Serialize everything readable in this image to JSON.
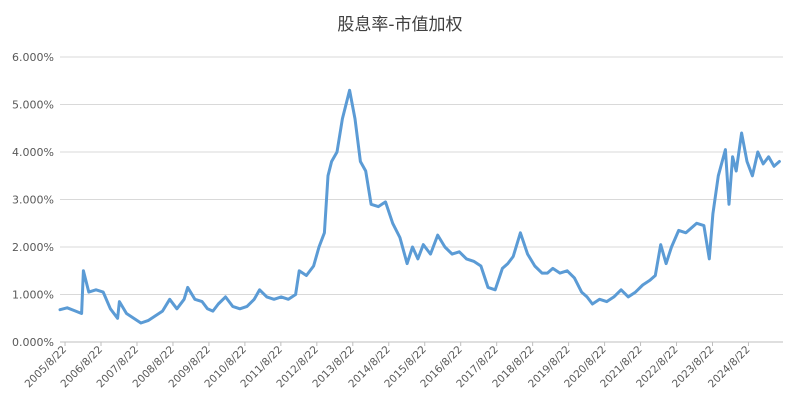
{
  "chart_data": {
    "type": "line",
    "title": "股息率-市值加权",
    "xlabel": "",
    "ylabel": "",
    "ylim": [
      0,
      6
    ],
    "y_ticks": [
      0,
      1,
      2,
      3,
      4,
      5,
      6
    ],
    "y_tick_labels": [
      "0.000%",
      "1.000%",
      "2.000%",
      "3.000%",
      "4.000%",
      "5.000%",
      "6.000%"
    ],
    "x_range": [
      2005.5,
      2025.6
    ],
    "x_ticks": [
      2005.64,
      2006.64,
      2007.64,
      2008.64,
      2009.64,
      2010.64,
      2011.64,
      2012.64,
      2013.64,
      2014.64,
      2015.64,
      2016.64,
      2017.64,
      2018.64,
      2019.64,
      2020.64,
      2021.64,
      2022.64,
      2023.64,
      2024.64
    ],
    "x_tick_labels": [
      "2005/8/22",
      "2006/8/22",
      "2007/8/22",
      "2008/8/22",
      "2009/8/22",
      "2010/8/22",
      "2011/8/22",
      "2012/8/22",
      "2013/8/22",
      "2014/8/22",
      "2015/8/22",
      "2016/8/22",
      "2017/8/22",
      "2018/8/22",
      "2019/8/22",
      "2020/8/22",
      "2021/8/22",
      "2022/8/22",
      "2023/8/22",
      "2024/8/22"
    ],
    "grid": true,
    "legend": "none",
    "color": "#5b9bd5",
    "series": [
      {
        "x": [
          2005.5,
          2005.7,
          2005.9,
          2006.1,
          2006.15,
          2006.3,
          2006.5,
          2006.7,
          2006.9,
          2007.1,
          2007.15,
          2007.35,
          2007.55,
          2007.75,
          2007.95,
          2008.15,
          2008.35,
          2008.55,
          2008.75,
          2008.95,
          2009.05,
          2009.25,
          2009.45,
          2009.6,
          2009.75,
          2009.9,
          2010.1,
          2010.3,
          2010.5,
          2010.7,
          2010.9,
          2011.05,
          2011.25,
          2011.45,
          2011.65,
          2011.85,
          2012.05,
          2012.15,
          2012.35,
          2012.55,
          2012.7,
          2012.85,
          2012.95,
          2013.05,
          2013.2,
          2013.35,
          2013.55,
          2013.7,
          2013.85,
          2014.0,
          2014.15,
          2014.35,
          2014.55,
          2014.75,
          2014.95,
          2015.15,
          2015.3,
          2015.45,
          2015.6,
          2015.8,
          2016.0,
          2016.2,
          2016.4,
          2016.6,
          2016.8,
          2017.0,
          2017.2,
          2017.4,
          2017.6,
          2017.8,
          2017.95,
          2018.1,
          2018.3,
          2018.5,
          2018.7,
          2018.9,
          2019.05,
          2019.2,
          2019.4,
          2019.6,
          2019.8,
          2020.0,
          2020.15,
          2020.3,
          2020.5,
          2020.7,
          2020.9,
          2021.1,
          2021.3,
          2021.5,
          2021.7,
          2021.9,
          2022.05,
          2022.2,
          2022.35,
          2022.5,
          2022.7,
          2022.9,
          2023.05,
          2023.2,
          2023.4,
          2023.55,
          2023.65,
          2023.8,
          2024.0,
          2024.1,
          2024.2,
          2024.3,
          2024.45,
          2024.6,
          2024.75,
          2024.9,
          2025.05,
          2025.2,
          2025.35,
          2025.5
        ],
        "y": [
          0.68,
          0.72,
          0.66,
          0.6,
          1.5,
          1.05,
          1.1,
          1.05,
          0.7,
          0.5,
          0.85,
          0.6,
          0.5,
          0.4,
          0.45,
          0.55,
          0.65,
          0.9,
          0.7,
          0.9,
          1.15,
          0.9,
          0.85,
          0.7,
          0.65,
          0.8,
          0.95,
          0.75,
          0.7,
          0.75,
          0.9,
          1.1,
          0.95,
          0.9,
          0.95,
          0.9,
          1.0,
          1.5,
          1.4,
          1.6,
          2.0,
          2.3,
          3.5,
          3.8,
          4.0,
          4.7,
          5.3,
          4.7,
          3.8,
          3.6,
          2.9,
          2.85,
          2.95,
          2.5,
          2.2,
          1.65,
          2.0,
          1.75,
          2.05,
          1.85,
          2.25,
          2.0,
          1.85,
          1.9,
          1.75,
          1.7,
          1.6,
          1.15,
          1.1,
          1.55,
          1.65,
          1.8,
          2.3,
          1.85,
          1.6,
          1.45,
          1.45,
          1.55,
          1.45,
          1.5,
          1.35,
          1.05,
          0.95,
          0.8,
          0.9,
          0.85,
          0.95,
          1.1,
          0.95,
          1.05,
          1.2,
          1.3,
          1.4,
          2.05,
          1.65,
          2.0,
          2.35,
          2.3,
          2.4,
          2.5,
          2.45,
          1.75,
          2.7,
          3.5,
          4.05,
          2.9,
          3.9,
          3.6,
          4.4,
          3.8,
          3.5,
          4.0,
          3.75,
          3.9,
          3.7,
          3.8
        ]
      }
    ]
  }
}
